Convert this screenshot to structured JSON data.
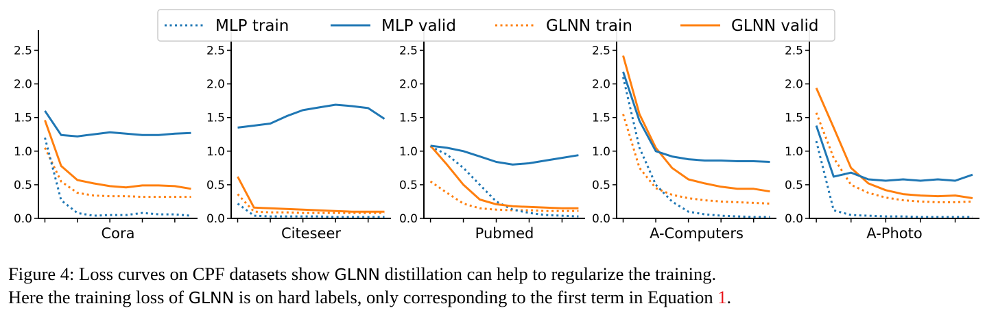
{
  "chart_data": {
    "type": "line",
    "colors": {
      "mlp": "#1f77b4",
      "glnn": "#ff7f0e"
    },
    "legend": [
      {
        "label": "MLP train",
        "color": "#1f77b4",
        "dash": "dotted"
      },
      {
        "label": "MLP valid",
        "color": "#1f77b4",
        "dash": "solid"
      },
      {
        "label": "GLNN train",
        "color": "#ff7f0e",
        "dash": "dotted"
      },
      {
        "label": "GLNN valid",
        "color": "#ff7f0e",
        "dash": "solid"
      }
    ],
    "yticks": [
      "0.0",
      "0.5",
      "1.0",
      "1.5",
      "2.0",
      "2.5"
    ],
    "ylim": [
      0,
      2.8
    ],
    "panels": [
      {
        "xlabel": "Cora",
        "xlim": [
          -0.4,
          9.4
        ],
        "series": {
          "mlp_train": [
            1.2,
            0.27,
            0.08,
            0.04,
            0.05,
            0.05,
            0.08,
            0.06,
            0.06,
            0.04
          ],
          "mlp_valid": [
            1.6,
            1.24,
            1.22,
            1.25,
            1.28,
            1.26,
            1.24,
            1.24,
            1.26,
            1.27
          ],
          "glnn_train": [
            1.05,
            0.55,
            0.38,
            0.34,
            0.33,
            0.33,
            0.32,
            0.32,
            0.32,
            0.32
          ],
          "glnn_valid": [
            1.46,
            0.78,
            0.57,
            0.52,
            0.48,
            0.46,
            0.49,
            0.49,
            0.48,
            0.44
          ]
        }
      },
      {
        "xlabel": "Citeseer",
        "xlim": [
          -0.4,
          9.4
        ],
        "series": {
          "mlp_train": [
            0.22,
            0.04,
            0.03,
            0.03,
            0.03,
            0.03,
            0.02,
            0.02,
            0.02,
            0.02
          ],
          "mlp_valid": [
            1.35,
            1.38,
            1.41,
            1.52,
            1.61,
            1.65,
            1.69,
            1.67,
            1.64,
            1.48
          ],
          "glnn_train": [
            0.36,
            0.1,
            0.09,
            0.09,
            0.08,
            0.08,
            0.08,
            0.08,
            0.08,
            0.08
          ],
          "glnn_valid": [
            0.62,
            0.16,
            0.15,
            0.14,
            0.13,
            0.12,
            0.11,
            0.1,
            0.1,
            0.1
          ]
        }
      },
      {
        "xlabel": "Pubmed",
        "xlim": [
          -0.4,
          9.4
        ],
        "series": {
          "mlp_train": [
            1.07,
            0.95,
            0.75,
            0.5,
            0.25,
            0.13,
            0.08,
            0.05,
            0.04,
            0.03
          ],
          "mlp_valid": [
            1.08,
            1.05,
            1.0,
            0.92,
            0.84,
            0.8,
            0.82,
            0.86,
            0.9,
            0.94
          ],
          "glnn_train": [
            0.55,
            0.38,
            0.22,
            0.15,
            0.13,
            0.12,
            0.12,
            0.11,
            0.11,
            0.11
          ],
          "glnn_valid": [
            1.08,
            0.8,
            0.5,
            0.28,
            0.21,
            0.18,
            0.17,
            0.16,
            0.15,
            0.15
          ]
        }
      },
      {
        "xlabel": "A-Computers",
        "xlim": [
          -0.4,
          9.4
        ],
        "series": {
          "mlp_train": [
            2.1,
            1.05,
            0.5,
            0.25,
            0.1,
            0.06,
            0.04,
            0.03,
            0.02,
            0.02
          ],
          "mlp_valid": [
            2.18,
            1.45,
            1.0,
            0.92,
            0.88,
            0.86,
            0.86,
            0.85,
            0.85,
            0.84
          ],
          "glnn_train": [
            1.55,
            0.75,
            0.45,
            0.35,
            0.3,
            0.27,
            0.25,
            0.24,
            0.23,
            0.22
          ],
          "glnn_valid": [
            2.42,
            1.55,
            1.05,
            0.75,
            0.58,
            0.52,
            0.47,
            0.44,
            0.44,
            0.4
          ]
        }
      },
      {
        "xlabel": "A-Photo",
        "xlim": [
          -0.4,
          9.4
        ],
        "series": {
          "mlp_train": [
            1.15,
            0.12,
            0.05,
            0.04,
            0.03,
            0.03,
            0.02,
            0.02,
            0.02,
            0.02
          ],
          "mlp_valid": [
            1.38,
            0.62,
            0.68,
            0.58,
            0.56,
            0.58,
            0.56,
            0.58,
            0.56,
            0.65
          ],
          "glnn_train": [
            1.57,
            0.9,
            0.5,
            0.38,
            0.31,
            0.27,
            0.25,
            0.24,
            0.24,
            0.25
          ],
          "glnn_valid": [
            1.94,
            1.35,
            0.75,
            0.52,
            0.42,
            0.36,
            0.34,
            0.33,
            0.34,
            0.3
          ]
        }
      }
    ]
  },
  "caption": {
    "line1_prefix": "Figure 4: Loss curves on CPF datasets show ",
    "line1_glnn": "GLNN",
    "line1_suffix": " distillation can help to regularize the training.",
    "line2_prefix": "Here the training loss of ",
    "line2_glnn": "GLNN",
    "line2_middle": " is on hard labels, only corresponding to the first term in Equation ",
    "line2_ref": "1",
    "line2_end": "."
  }
}
